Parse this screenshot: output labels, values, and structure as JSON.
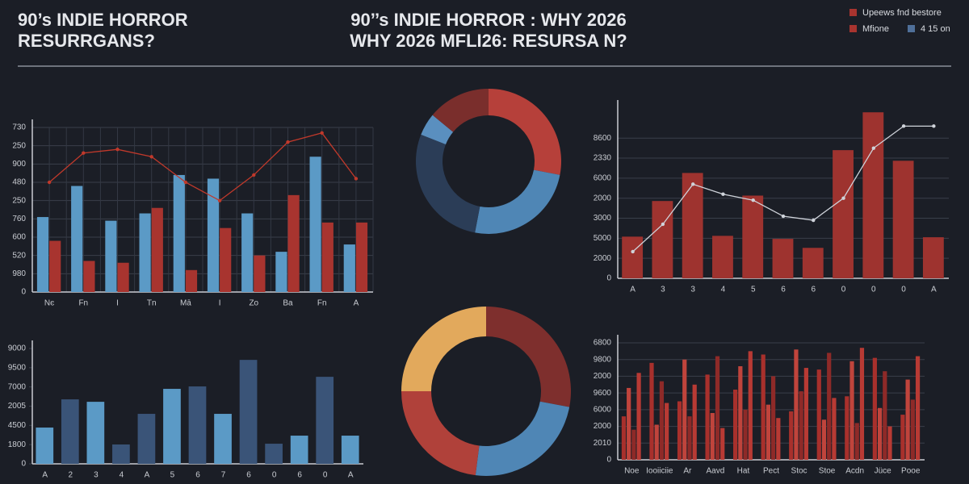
{
  "header": {
    "title_lines": [
      "90’s INDIE HORROR",
      "RESURRGANS?"
    ],
    "center_title_lines": [
      "90’’s INDIE HORROR : WHY   2026",
      "WHY 2026 MFLI26: RESURSA N?"
    ],
    "legend": [
      {
        "label": "Upeews fnd bestore",
        "color": "#a8342f"
      },
      {
        "label": "Mfione",
        "color": "#a8342f"
      },
      {
        "label": "4 15 on",
        "color": "#4f6f99"
      }
    ]
  },
  "chart_data": [
    {
      "type": "bar",
      "grid": true,
      "categories": [
        "Nє",
        "Fn",
        "I",
        "Tn",
        "Mā",
        "I",
        "Zo",
        "Ba",
        "Fn",
        "A"
      ],
      "ylim": [
        0,
        900
      ],
      "yticks": [
        0,
        {
          "value": 100,
          "label": "980"
        },
        {
          "value": 200,
          "label": "520"
        },
        {
          "value": 300,
          "label": "600"
        },
        {
          "value": 400,
          "label": "760"
        },
        {
          "value": 500,
          "label": "250"
        },
        {
          "value": 600,
          "label": "480"
        },
        {
          "value": 700,
          "label": "900"
        },
        {
          "value": 800,
          "label": "250"
        },
        {
          "value": 900,
          "label": "730"
        }
      ],
      "series": [
        {
          "color": "#5b9ac6",
          "values": [
            410,
            580,
            390,
            430,
            640,
            620,
            430,
            220,
            740,
            260
          ]
        },
        {
          "color": "#a8342f",
          "values": [
            280,
            170,
            160,
            460,
            120,
            350,
            200,
            530,
            380,
            380
          ]
        },
        {
          "type": "line",
          "color": "#c0392b",
          "values": [
            600,
            760,
            780,
            740,
            600,
            500,
            640,
            820,
            870,
            620
          ]
        }
      ]
    },
    {
      "type": "pie",
      "values": [
        28,
        25,
        28,
        5,
        14
      ],
      "colors": [
        "#b6403a",
        "#4f86b5",
        "#2b3d57",
        "#5a8fbf",
        "#7a2e2c"
      ]
    },
    {
      "type": "bar",
      "grid": true,
      "categories": [
        "A",
        "3",
        "3",
        "4",
        "5",
        "6",
        "6",
        "0",
        "0",
        "0",
        "A"
      ],
      "ylim": [
        0,
        8500
      ],
      "yticks": [
        0,
        {
          "value": 1000,
          "label": "2000"
        },
        {
          "value": 2000,
          "label": "5000"
        },
        {
          "value": 3000,
          "label": "3000"
        },
        {
          "value": 4000,
          "label": "2000"
        },
        {
          "value": 5000,
          "label": "6000"
        },
        {
          "value": 6000,
          "label": "2330"
        },
        {
          "value": 7000,
          "label": "8600"
        }
      ],
      "series": [
        {
          "color": "#9e332f",
          "values": [
            2080,
            3860,
            5260,
            2120,
            4130,
            1970,
            1520,
            6400,
            8290,
            5870,
            2050
          ]
        },
        {
          "type": "line",
          "color": "#cfd3da",
          "values": [
            1330,
            2700,
            4700,
            4200,
            3900,
            3100,
            2900,
            4000,
            6500,
            7600,
            7600
          ]
        }
      ]
    },
    {
      "type": "bar",
      "grid": false,
      "categories": [
        "A",
        "2",
        "3",
        "4",
        "A",
        "5",
        "6",
        "7",
        "6",
        "0",
        "6",
        "0",
        "A"
      ],
      "ylim": [
        0,
        9000
      ],
      "yticks": [
        0,
        {
          "value": 1500,
          "label": "1800"
        },
        {
          "value": 3000,
          "label": "4500"
        },
        {
          "value": 4500,
          "label": "2005"
        },
        {
          "value": 6000,
          "label": "7000"
        },
        {
          "value": 7500,
          "label": "9500"
        },
        {
          "value": 9000,
          "label": "9000"
        }
      ],
      "series": [
        {
          "colors": [
            "#5b9ac6",
            "#3a5478",
            "#5b9ac6",
            "#3a5478",
            "#3a5478",
            "#5b9ac6",
            "#3a5478",
            "#5b9ac6",
            "#3a5478",
            "#3a5478",
            "#5b9ac6",
            "#3a5478",
            "#5b9ac6"
          ],
          "values": [
            2830,
            5030,
            4840,
            1510,
            3900,
            5850,
            6040,
            3900,
            8110,
            1570,
            2200,
            6790,
            2200
          ]
        }
      ]
    },
    {
      "type": "pie",
      "values": [
        28,
        24,
        23,
        25
      ],
      "colors": [
        "#7e2f2d",
        "#4f86b5",
        "#b0413a",
        "#e2a95c"
      ]
    },
    {
      "type": "bar",
      "grid": true,
      "categories": [
        "Noe",
        "Iooiiciie",
        "Ar",
        "Aavd",
        "Hat",
        "Pect",
        "Stoc",
        "Stoe",
        "Acdn",
        "Jüce",
        "Pooe"
      ],
      "ylim": [
        0,
        7000
      ],
      "yticks": [
        0,
        {
          "value": 1000,
          "label": "2010"
        },
        {
          "value": 2000,
          "label": "2000"
        },
        {
          "value": 3000,
          "label": "6000"
        },
        {
          "value": 4000,
          "label": "9600"
        },
        {
          "value": 5000,
          "label": "2000"
        },
        {
          "value": 6000,
          "label": "9800"
        },
        {
          "value": 7000,
          "label": "6800"
        }
      ],
      "series": [
        {
          "color": "#a8302c",
          "values": [
            2600,
            5800,
            3500,
            5100,
            4200,
            6300,
            2900,
            5400,
            3800,
            6100,
            2700
          ]
        },
        {
          "color": "#c0443c",
          "values": [
            4300,
            2100,
            6000,
            2800,
            5600,
            3300,
            6600,
            2400,
            5900,
            3100,
            4800
          ]
        },
        {
          "color": "#8e2a28",
          "values": [
            1800,
            4700,
            2600,
            6200,
            3000,
            5000,
            4100,
            6400,
            2200,
            5300,
            3600
          ]
        },
        {
          "color": "#b83a34",
          "values": [
            5200,
            3400,
            4500,
            1900,
            6500,
            2500,
            5500,
            3700,
            6700,
            2000,
            6200
          ]
        }
      ]
    }
  ]
}
